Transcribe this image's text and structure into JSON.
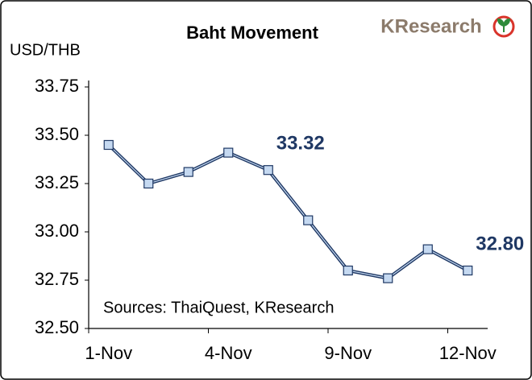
{
  "chart_data": {
    "type": "line",
    "title": "Baht Movement",
    "y_label": "USD/THB",
    "logo": "KResearch",
    "annotation": "Sources: ThaiQuest, KResearch",
    "categories": [
      "1-Nov",
      null,
      null,
      "4-Nov",
      null,
      null,
      "9-Nov",
      null,
      null,
      "12-Nov"
    ],
    "values": [
      33.45,
      33.25,
      33.31,
      33.41,
      33.32,
      33.06,
      32.8,
      32.76,
      32.91,
      32.8
    ],
    "value_labels": [
      null,
      null,
      null,
      null,
      "33.32",
      null,
      null,
      null,
      null,
      "32.80"
    ],
    "color": "#1f3864",
    "marker_color": "#c5d9f1",
    "ylim": [
      32.5,
      33.75
    ],
    "yticks": [
      {
        "value": 32.5,
        "label": "32.50"
      },
      32.75,
      {
        "value": 33,
        "label": "33.00"
      },
      33.25,
      {
        "value": 33.5,
        "label": "33.50"
      },
      33.75
    ]
  }
}
